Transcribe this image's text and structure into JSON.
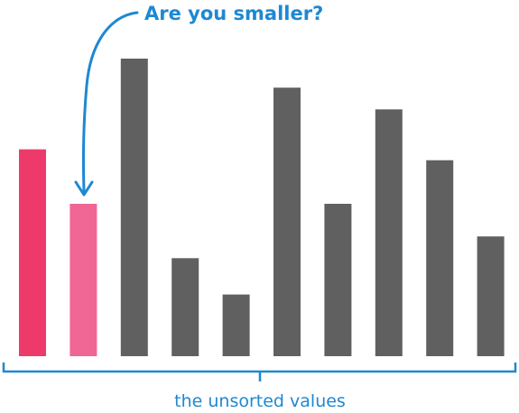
{
  "annotation": {
    "text": "Are you smaller?",
    "color": "#1E88D2"
  },
  "caption": {
    "text": "the unsorted values",
    "color": "#1E88D2"
  },
  "colors": {
    "key_bar": "#EE3A6A",
    "compare_bar": "#F06695",
    "default_bar": "#606060",
    "accent": "#1E88D2"
  },
  "chart_data": {
    "type": "bar",
    "values": [
      57,
      42,
      82,
      27,
      17,
      74,
      42,
      68,
      54,
      33
    ],
    "roles": [
      "key",
      "compare",
      "default",
      "default",
      "default",
      "default",
      "default",
      "default",
      "default",
      "default"
    ]
  }
}
